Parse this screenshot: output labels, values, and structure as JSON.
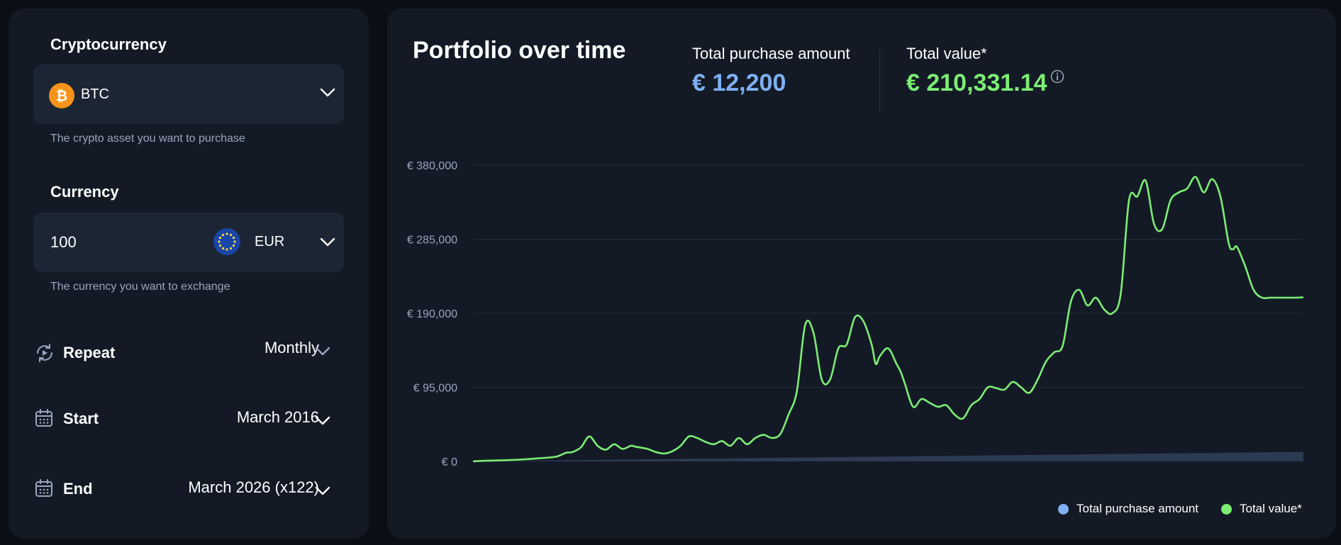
{
  "form": {
    "crypto": {
      "label": "Cryptocurrency",
      "value": "BTC",
      "icon": "bitcoin-icon",
      "helper": "The crypto asset you want to purchase"
    },
    "currency": {
      "label": "Currency",
      "amount": "100",
      "code": "EUR",
      "icon": "eu-flag-icon",
      "helper": "The currency you want to exchange"
    },
    "repeat": {
      "label": "Repeat",
      "value": "Monthly",
      "icon": "repeat-icon"
    },
    "start": {
      "label": "Start",
      "value": "March 2016",
      "icon": "calendar-icon"
    },
    "end": {
      "label": "End",
      "value": "March 2026 (x122)",
      "icon": "calendar-icon"
    }
  },
  "summary": {
    "title": "Portfolio over time",
    "purchase_label": "Total purchase amount",
    "purchase_value": "€ 12,200",
    "value_label": "Total value*",
    "value_value": "€ 210,331.14",
    "info_icon": "info-icon"
  },
  "colors": {
    "purchase": "#7eb0f2",
    "value": "#7ded74",
    "purchase_area": "#2c3a53",
    "grid": "#222b3a",
    "tick": "#9aa6bd",
    "bitcoin": "#f7931a",
    "eu_flag": "#1946a8"
  },
  "chart_data": {
    "type": "line",
    "title": "Portfolio over time",
    "x_range": [
      "2016-03",
      "2026-03"
    ],
    "y_ticks": [
      "€ 0",
      "€ 95,000",
      "€ 190,000",
      "€ 285,000",
      "€ 380,000"
    ],
    "ylim": [
      0,
      380000
    ],
    "grid": true,
    "legend": {
      "position": "bottom-right",
      "entries": [
        "Total purchase amount",
        "Total value*"
      ]
    },
    "series": [
      {
        "name": "Total purchase amount",
        "type": "area",
        "x": [
          0,
          1
        ],
        "y": [
          100,
          12200
        ]
      },
      {
        "name": "Total value*",
        "type": "line",
        "x": [
          0.0,
          0.02,
          0.04,
          0.06,
          0.08,
          0.1,
          0.112,
          0.12,
          0.13,
          0.14,
          0.15,
          0.16,
          0.17,
          0.18,
          0.19,
          0.195,
          0.2,
          0.21,
          0.22,
          0.23,
          0.24,
          0.25,
          0.26,
          0.27,
          0.28,
          0.29,
          0.3,
          0.31,
          0.32,
          0.33,
          0.34,
          0.35,
          0.36,
          0.37,
          0.38,
          0.39,
          0.4,
          0.41,
          0.42,
          0.43,
          0.44,
          0.45,
          0.46,
          0.47,
          0.48,
          0.485,
          0.49,
          0.5,
          0.51,
          0.515,
          0.52,
          0.53,
          0.54,
          0.55,
          0.56,
          0.57,
          0.58,
          0.59,
          0.6,
          0.61,
          0.62,
          0.63,
          0.64,
          0.65,
          0.66,
          0.67,
          0.68,
          0.69,
          0.7,
          0.71,
          0.72,
          0.73,
          0.74,
          0.75,
          0.76,
          0.77,
          0.78,
          0.79,
          0.8,
          0.81,
          0.82,
          0.83,
          0.84,
          0.85,
          0.86,
          0.87,
          0.88,
          0.89,
          0.9,
          0.91,
          0.915,
          0.92,
          0.93,
          0.94,
          0.95,
          0.96,
          0.97,
          0.975,
          0.98,
          0.99,
          1.0
        ],
        "y": [
          100,
          1000,
          1500,
          2500,
          4000,
          6000,
          11000,
          12000,
          18000,
          32000,
          20000,
          15000,
          22000,
          16000,
          20000,
          19000,
          18000,
          16000,
          12000,
          10000,
          13000,
          20000,
          32000,
          30000,
          25000,
          22000,
          26000,
          20000,
          30000,
          22000,
          30000,
          34000,
          30000,
          35000,
          60000,
          90000,
          175000,
          165000,
          105000,
          105000,
          145000,
          150000,
          185000,
          180000,
          150000,
          125000,
          135000,
          145000,
          125000,
          115000,
          100000,
          70000,
          80000,
          75000,
          70000,
          72000,
          60000,
          55000,
          72000,
          80000,
          95000,
          94000,
          92000,
          102000,
          95000,
          88000,
          105000,
          128000,
          140000,
          148000,
          205000,
          220000,
          200000,
          210000,
          195000,
          190000,
          215000,
          335000,
          340000,
          360000,
          305000,
          298000,
          335000,
          345000,
          350000,
          365000,
          345000,
          362000,
          340000,
          280000,
          272000,
          275000,
          250000,
          220000,
          210000,
          210000,
          210000,
          210000,
          210000,
          210000,
          210331
        ]
      }
    ]
  }
}
